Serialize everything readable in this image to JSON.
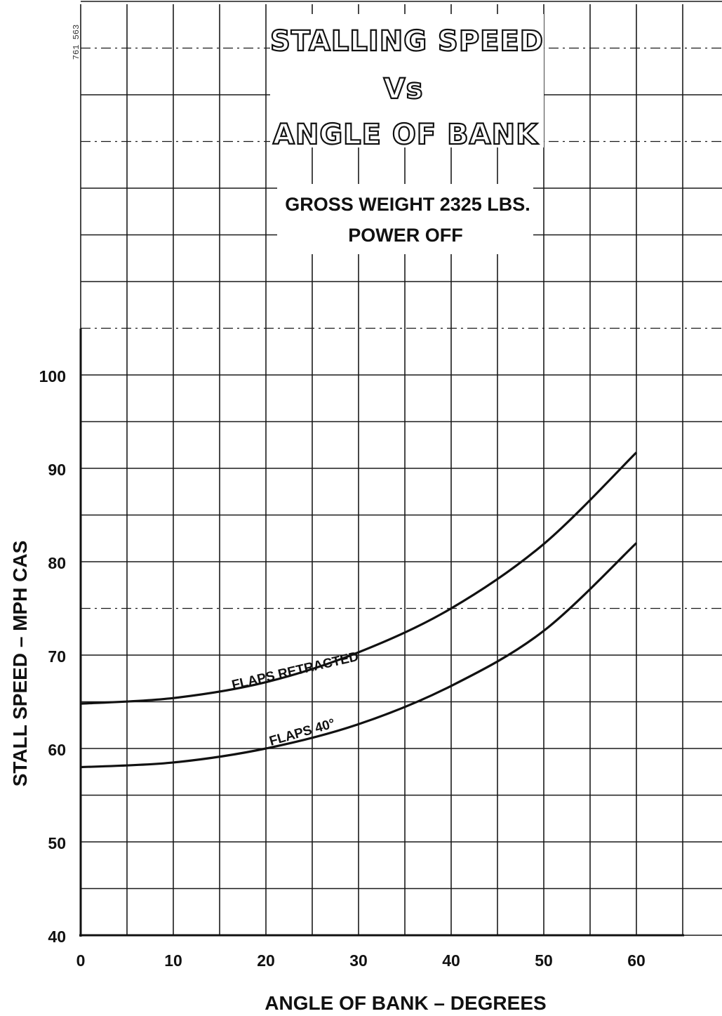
{
  "document_number": "761 563",
  "chart_data": {
    "type": "line",
    "title_lines": [
      "STALLING SPEED",
      "Vs",
      "ANGLE OF BANK"
    ],
    "subtitle_lines": [
      "GROSS WEIGHT 2325 LBS.",
      "POWER OFF"
    ],
    "xlabel": "ANGLE OF BANK – DEGREES",
    "ylabel": "STALL SPEED – MPH CAS",
    "xlim": [
      0,
      60
    ],
    "ylim": [
      40,
      100
    ],
    "x_ticks": [
      "0",
      "10",
      "20",
      "30",
      "40",
      "50",
      "60"
    ],
    "y_ticks": [
      "40",
      "50",
      "60",
      "70",
      "80",
      "90",
      "100"
    ],
    "grid": true,
    "series": [
      {
        "name": "FLAPS RETRACTED",
        "x": [
          0,
          10,
          20,
          30,
          40,
          50,
          60
        ],
        "y": [
          64.8,
          65.4,
          67.1,
          70.3,
          75.0,
          81.9,
          91.7
        ]
      },
      {
        "name": "FLAPS 40°",
        "x": [
          0,
          10,
          20,
          30,
          40,
          50,
          60
        ],
        "y": [
          58.0,
          58.5,
          60.0,
          62.6,
          66.7,
          72.6,
          82.0
        ]
      }
    ]
  }
}
